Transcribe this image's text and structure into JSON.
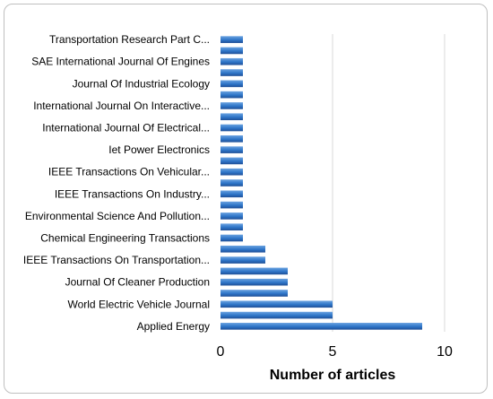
{
  "chart_data": {
    "type": "bar",
    "orientation": "horizontal",
    "categories": [
      "Applied Energy",
      "",
      "World Electric Vehicle Journal",
      "",
      "Journal Of Cleaner Production",
      "",
      "IEEE Transactions On Transportation...",
      "",
      "Chemical Engineering Transactions",
      "",
      "Environmental Science And Pollution...",
      "",
      "IEEE Transactions On Industry...",
      "",
      "IEEE Transactions On Vehicular...",
      "",
      "Iet Power Electronics",
      "",
      "International Journal Of Electrical...",
      "",
      "International Journal On Interactive...",
      "",
      "Journal Of Industrial Ecology",
      "",
      "SAE International Journal Of Engines",
      "",
      "Transportation Research Part C..."
    ],
    "values": [
      9,
      5,
      5,
      3,
      3,
      3,
      2,
      2,
      1,
      1,
      1,
      1,
      1,
      1,
      1,
      1,
      1,
      1,
      1,
      1,
      1,
      1,
      1,
      1,
      1,
      1,
      1
    ],
    "xlim": [
      0,
      10
    ],
    "xticks": [
      "0",
      "5",
      "10"
    ],
    "xlabel": "Number of articles",
    "ylabel": "",
    "title": "",
    "grid": "vertical",
    "legend": "none",
    "bar_color": "#2e75c8",
    "bar_color_light": "#6aa2e0",
    "bar_color_dark": "#1f4f96"
  }
}
